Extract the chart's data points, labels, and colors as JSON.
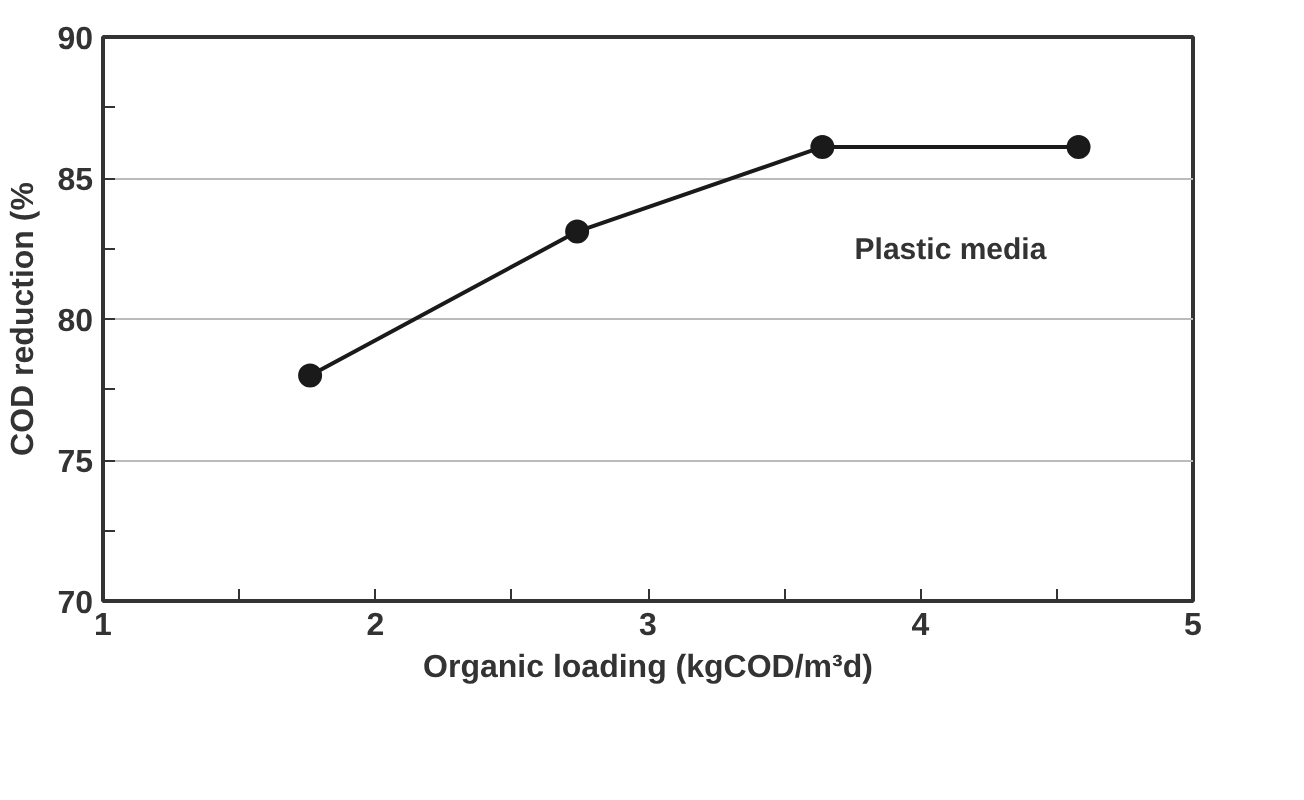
{
  "chart_data": {
    "type": "line",
    "xlabel": "Organic loading (kgCOD/m³d)",
    "ylabel": "COD reduction (%",
    "x": [
      1.76,
      2.74,
      3.64,
      4.58
    ],
    "series": [
      {
        "name": "Plastic media",
        "color": "#1a1a1a",
        "values": [
          78.0,
          83.1,
          86.1,
          86.1
        ]
      }
    ],
    "xlim": [
      1,
      5
    ],
    "ylim": [
      70,
      90
    ],
    "xticks": [
      1,
      {
        "value": 1.5,
        "label": null
      },
      2,
      {
        "value": 2.5,
        "label": null
      },
      3,
      {
        "value": 3.5,
        "label": null
      },
      4,
      {
        "value": 4.5,
        "label": null
      },
      5
    ],
    "yticks": [
      70,
      {
        "value": 72.5,
        "label": null
      },
      75,
      {
        "value": 77.5,
        "label": null
      },
      80,
      {
        "value": 82.5,
        "label": null
      },
      85,
      {
        "value": 87.5,
        "label": null
      },
      90
    ],
    "grid": "y",
    "marker": "circle",
    "line_style": "solid"
  }
}
